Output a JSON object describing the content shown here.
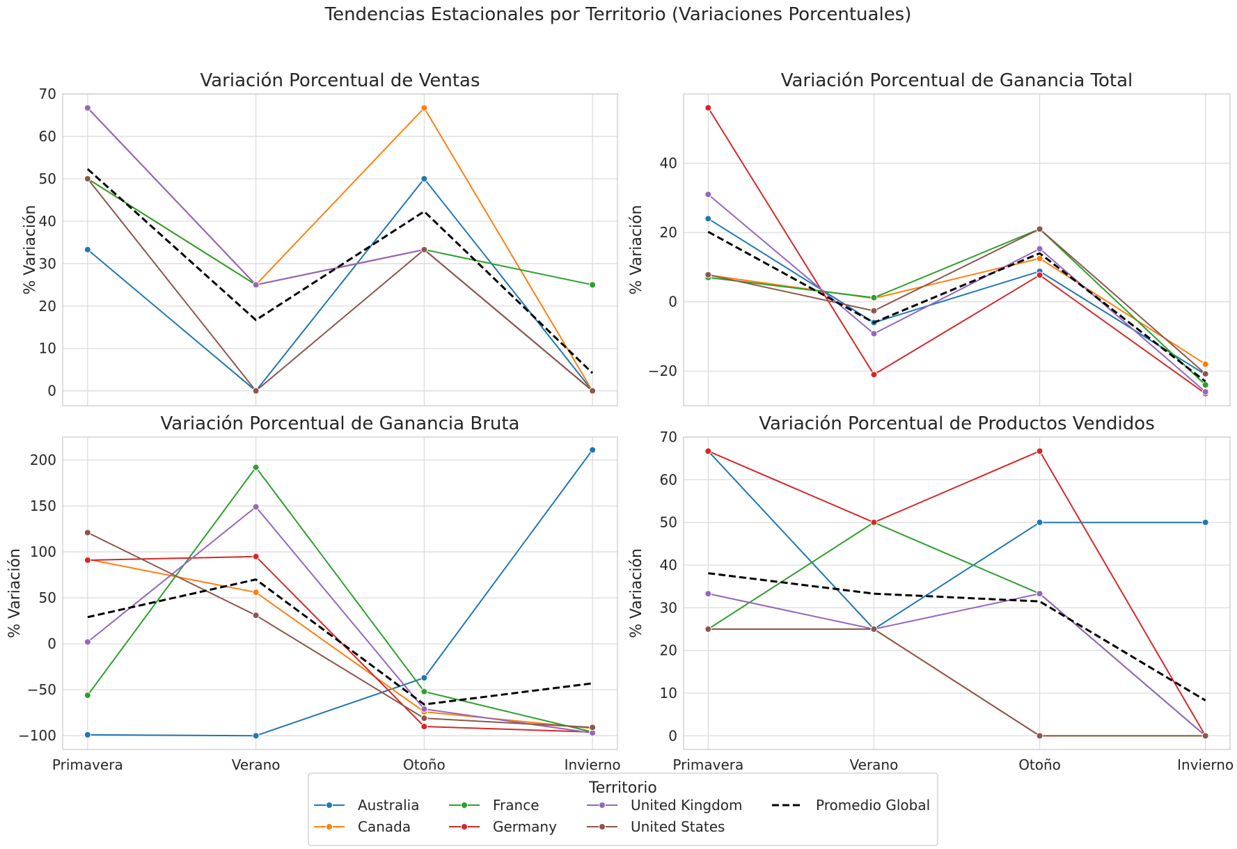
{
  "title": "Tendencias Estacionales por Territorio (Variaciones Porcentuales)",
  "legend": {
    "title": "Territorio",
    "position": "bottom-center",
    "entries": [
      {
        "name": "Australia",
        "color": "#1f77b4"
      },
      {
        "name": "Canada",
        "color": "#ff7f0e"
      },
      {
        "name": "France",
        "color": "#2ca02c"
      },
      {
        "name": "Germany",
        "color": "#d62728"
      },
      {
        "name": "United Kingdom",
        "color": "#9467bd"
      },
      {
        "name": "United States",
        "color": "#8c564b"
      },
      {
        "name": "Promedio Global",
        "color": "#000000",
        "dashed": true
      }
    ]
  },
  "chart_data": [
    {
      "type": "line",
      "title": "Variación Porcentual de Ventas",
      "xlabel": "",
      "ylabel": "% Variación",
      "categories": [
        "Primavera",
        "Verano",
        "Otoño",
        "Invierno"
      ],
      "show_xticklabels": false,
      "ylim": [
        -3.5,
        70
      ],
      "yticks": [
        0,
        10,
        20,
        30,
        40,
        50,
        60,
        70
      ],
      "grid": true,
      "series": [
        {
          "name": "Australia",
          "color": "#1f77b4",
          "values": [
            33.3,
            0,
            50,
            0
          ]
        },
        {
          "name": "Canada",
          "color": "#ff7f0e",
          "values": [
            50,
            25,
            66.7,
            0
          ]
        },
        {
          "name": "France",
          "color": "#2ca02c",
          "values": [
            50,
            25,
            33.3,
            25
          ]
        },
        {
          "name": "Germany",
          "color": "#d62728",
          "values": [
            66.7,
            25,
            33.3,
            0
          ]
        },
        {
          "name": "United Kingdom",
          "color": "#9467bd",
          "values": [
            66.7,
            25,
            33.3,
            0
          ]
        },
        {
          "name": "United States",
          "color": "#8c564b",
          "values": [
            50,
            0,
            33.3,
            0
          ]
        },
        {
          "name": "Promedio Global",
          "color": "#000000",
          "dashed": true,
          "values": [
            52.3,
            16.7,
            42.3,
            4.2
          ]
        }
      ]
    },
    {
      "type": "line",
      "title": "Variación Porcentual de Ganancia Total",
      "xlabel": "",
      "ylabel": "% Variación",
      "categories": [
        "Primavera",
        "Verano",
        "Otoño",
        "Invierno"
      ],
      "show_xticklabels": false,
      "ylim": [
        -30,
        60
      ],
      "yticks": [
        -20,
        0,
        20,
        40
      ],
      "grid": true,
      "series": [
        {
          "name": "Australia",
          "color": "#1f77b4",
          "values": [
            24,
            -6,
            8.8,
            -21
          ]
        },
        {
          "name": "Canada",
          "color": "#ff7f0e",
          "values": [
            7.7,
            1,
            12.5,
            -18
          ]
        },
        {
          "name": "France",
          "color": "#2ca02c",
          "values": [
            7,
            1.2,
            21,
            -24
          ]
        },
        {
          "name": "Germany",
          "color": "#d62728",
          "values": [
            56,
            -21,
            7.7,
            -26.5
          ]
        },
        {
          "name": "United Kingdom",
          "color": "#9467bd",
          "values": [
            31,
            -9.2,
            15.3,
            -26
          ]
        },
        {
          "name": "United States",
          "color": "#8c564b",
          "values": [
            7.8,
            -2.6,
            21,
            -20.8
          ]
        },
        {
          "name": "Promedio Global",
          "color": "#000000",
          "dashed": true,
          "values": [
            20.2,
            -6,
            14,
            -23
          ]
        }
      ]
    },
    {
      "type": "line",
      "title": "Variación Porcentual de Ganancia Bruta",
      "xlabel": "",
      "ylabel": "% Variación",
      "categories": [
        "Primavera",
        "Verano",
        "Otoño",
        "Invierno"
      ],
      "show_xticklabels": true,
      "ylim": [
        -115,
        225
      ],
      "yticks": [
        -100,
        -50,
        0,
        50,
        100,
        150,
        200
      ],
      "grid": true,
      "series": [
        {
          "name": "Australia",
          "color": "#1f77b4",
          "values": [
            -99,
            -100,
            -37,
            211
          ]
        },
        {
          "name": "Canada",
          "color": "#ff7f0e",
          "values": [
            92,
            56,
            -74,
            -92
          ]
        },
        {
          "name": "France",
          "color": "#2ca02c",
          "values": [
            -56,
            192,
            -52,
            -96
          ]
        },
        {
          "name": "Germany",
          "color": "#d62728",
          "values": [
            91,
            95,
            -90,
            -96
          ]
        },
        {
          "name": "United Kingdom",
          "color": "#9467bd",
          "values": [
            2,
            149,
            -71,
            -97
          ]
        },
        {
          "name": "United States",
          "color": "#8c564b",
          "values": [
            121,
            31,
            -81,
            -91
          ]
        },
        {
          "name": "Promedio Global",
          "color": "#000000",
          "dashed": true,
          "values": [
            29,
            70,
            -66,
            -43
          ]
        }
      ]
    },
    {
      "type": "line",
      "title": "Variación Porcentual de Productos Vendidos",
      "xlabel": "",
      "ylabel": "% Variación",
      "categories": [
        "Primavera",
        "Verano",
        "Otoño",
        "Invierno"
      ],
      "show_xticklabels": true,
      "ylim": [
        -3.2,
        70
      ],
      "yticks": [
        0,
        10,
        20,
        30,
        40,
        50,
        60,
        70
      ],
      "grid": true,
      "series": [
        {
          "name": "Australia",
          "color": "#1f77b4",
          "values": [
            66.7,
            25,
            50,
            50
          ]
        },
        {
          "name": "Canada",
          "color": "#ff7f0e",
          "values": [
            25,
            25,
            0,
            0
          ]
        },
        {
          "name": "France",
          "color": "#2ca02c",
          "values": [
            25,
            50,
            33.3,
            0
          ]
        },
        {
          "name": "Germany",
          "color": "#d62728",
          "values": [
            66.7,
            50,
            66.7,
            0
          ]
        },
        {
          "name": "United Kingdom",
          "color": "#9467bd",
          "values": [
            33.3,
            25,
            33.3,
            0
          ]
        },
        {
          "name": "United States",
          "color": "#8c564b",
          "values": [
            25,
            25,
            0,
            0
          ]
        },
        {
          "name": "Promedio Global",
          "color": "#000000",
          "dashed": true,
          "values": [
            38.1,
            33.3,
            31.5,
            8.3
          ]
        }
      ]
    }
  ]
}
